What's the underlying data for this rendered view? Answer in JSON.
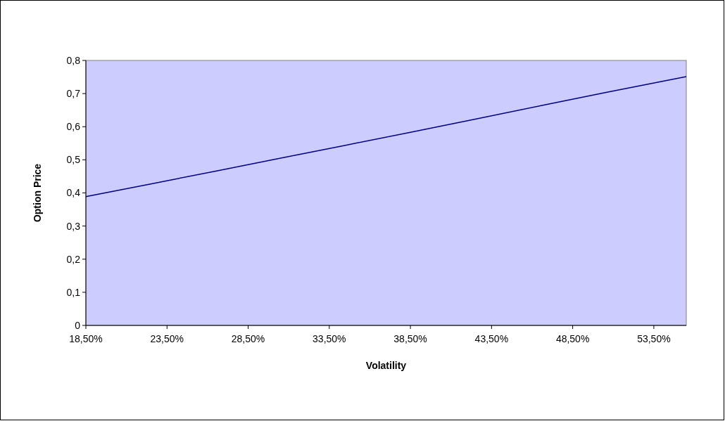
{
  "chart_data": {
    "type": "line",
    "xlabel": "Volatility",
    "ylabel": "Option Price",
    "x": [
      18.5,
      22.5,
      26.5,
      30.5,
      34.5,
      38.5,
      42.5,
      46.5,
      50.5,
      55.5
    ],
    "series": [
      {
        "color": "#000080",
        "values": [
          0.389,
          0.427,
          0.466,
          0.505,
          0.544,
          0.583,
          0.623,
          0.663,
          0.703,
          0.751
        ]
      }
    ],
    "xlim": [
      18.5,
      55.5
    ],
    "xticks": [
      {
        "value": 18.5,
        "label": "18,50%"
      },
      {
        "value": 23.5,
        "label": "23,50%"
      },
      {
        "value": 28.5,
        "label": "28,50%"
      },
      {
        "value": 33.5,
        "label": "33,50%"
      },
      {
        "value": 38.5,
        "label": "38,50%"
      },
      {
        "value": 43.5,
        "label": "43,50%"
      },
      {
        "value": 48.5,
        "label": "48,50%"
      },
      {
        "value": 53.5,
        "label": "53,50%"
      }
    ],
    "ylim": [
      0,
      0.8
    ],
    "yticks": [
      0,
      {
        "value": 0.1,
        "label": "0,1"
      },
      {
        "value": 0.2,
        "label": "0,2"
      },
      {
        "value": 0.3,
        "label": "0,3"
      },
      {
        "value": 0.4,
        "label": "0,4"
      },
      {
        "value": 0.5,
        "label": "0,5"
      },
      {
        "value": 0.6,
        "label": "0,6"
      },
      {
        "value": 0.7,
        "label": "0,7"
      },
      {
        "value": 0.8,
        "label": "0,8"
      }
    ],
    "grid": false,
    "marker": "none",
    "line_style": "solid"
  }
}
